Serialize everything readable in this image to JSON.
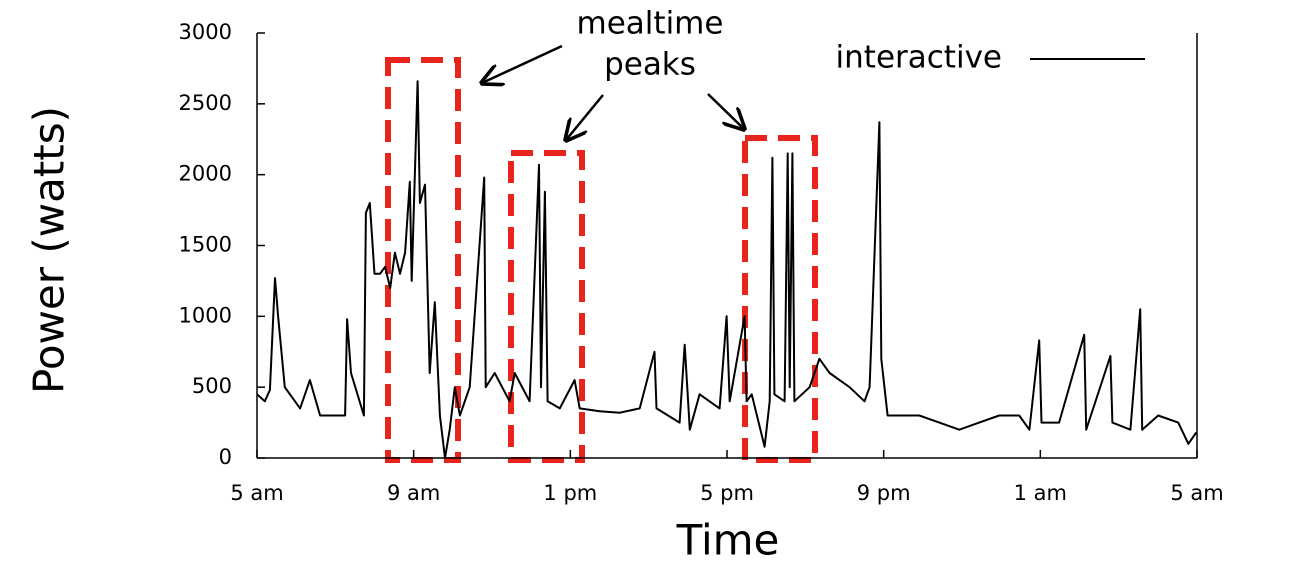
{
  "chart_data": {
    "type": "line",
    "y_label": "Power (watts)",
    "x_label": "Time",
    "annotation": [
      "mealtime",
      "peaks"
    ],
    "legend_position": "top-right",
    "xlim": [
      0,
      24
    ],
    "xticks": [
      {
        "value": 0,
        "label": "5 am"
      },
      {
        "value": 4,
        "label": "9 am"
      },
      {
        "value": 8,
        "label": "1 pm"
      },
      {
        "value": 12,
        "label": "5 pm"
      },
      {
        "value": 16,
        "label": "9 pm"
      },
      {
        "value": 20,
        "label": "1 am"
      },
      {
        "value": 24,
        "label": "5 am"
      }
    ],
    "ylim": [
      0,
      3000
    ],
    "yticks": [
      0,
      500,
      1000,
      1500,
      2000,
      2500,
      3000
    ],
    "x": [
      0,
      0.2,
      0.33,
      0.46,
      0.54,
      0.71,
      1.1,
      1.35,
      1.61,
      2.25,
      2.3,
      2.4,
      2.73,
      2.78,
      2.88,
      3.0,
      3.14,
      3.27,
      3.4,
      3.52,
      3.65,
      3.78,
      3.9,
      3.95,
      4.1,
      4.16,
      4.29,
      4.41,
      4.54,
      4.67,
      4.8,
      4.92,
      5.05,
      5.18,
      5.43,
      5.8,
      5.84,
      6.07,
      6.45,
      6.58,
      6.96,
      7.2,
      7.25,
      7.35,
      7.42,
      7.73,
      8.11,
      8.24,
      8.75,
      9.26,
      9.77,
      10.15,
      10.2,
      10.79,
      10.92,
      11.05,
      11.3,
      11.81,
      11.99,
      12.07,
      12.45,
      12.5,
      12.63,
      12.96,
      13.09,
      13.16,
      13.21,
      13.47,
      13.55,
      13.6,
      13.67,
      13.72,
      14.11,
      14.36,
      14.62,
      15.13,
      15.51,
      15.64,
      15.89,
      15.94,
      16.1,
      16.4,
      16.91,
      17.42,
      17.93,
      18.44,
      18.95,
      19.46,
      19.72,
      19.97,
      20.03,
      20.48,
      21.12,
      21.17,
      21.79,
      21.84,
      22.3,
      22.55,
      22.6,
      23.01,
      23.52,
      23.78,
      23.98
    ],
    "series": [
      {
        "name": "interactive",
        "color": "#000000",
        "values": [
          450,
          400,
          480,
          1270,
          1000,
          500,
          350,
          550,
          300,
          300,
          980,
          600,
          300,
          1730,
          1800,
          1300,
          1300,
          1350,
          1200,
          1450,
          1300,
          1450,
          1950,
          1250,
          2660,
          1800,
          1930,
          600,
          1100,
          300,
          0,
          200,
          500,
          300,
          500,
          1980,
          500,
          600,
          400,
          600,
          400,
          2070,
          500,
          1880,
          400,
          350,
          550,
          350,
          330,
          320,
          350,
          750,
          350,
          250,
          800,
          200,
          450,
          350,
          1000,
          400,
          1000,
          400,
          450,
          80,
          400,
          2120,
          450,
          400,
          2150,
          500,
          2150,
          400,
          500,
          700,
          600,
          500,
          400,
          500,
          2370,
          700,
          300,
          300,
          300,
          250,
          200,
          250,
          300,
          300,
          200,
          830,
          250,
          250,
          870,
          200,
          720,
          250,
          200,
          1050,
          200,
          300,
          250,
          100,
          180
        ]
      }
    ]
  }
}
